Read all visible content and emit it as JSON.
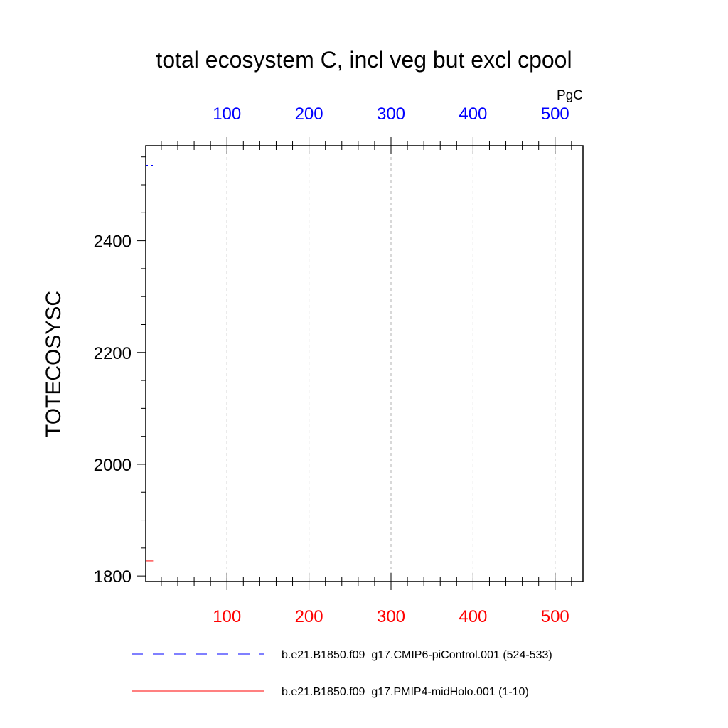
{
  "chart_data": {
    "type": "line",
    "title": "total ecosystem C, incl veg but excl cpool",
    "units": "PgC",
    "ylabel": "TOTECOSYSC",
    "xlabel": "",
    "grid": "vertical dashed",
    "legend_position": "bottom",
    "x_top": {
      "range": [
        1,
        534
      ],
      "ticks": [
        100,
        200,
        300,
        400,
        500
      ],
      "tick_labels": [
        "100",
        "200",
        "300",
        "400",
        "500"
      ],
      "color": "#0000ff"
    },
    "x_bottom": {
      "range": [
        1,
        534
      ],
      "ticks": [
        100,
        200,
        300,
        400,
        500
      ],
      "tick_labels": [
        "100",
        "200",
        "300",
        "400",
        "500"
      ],
      "color": "#ff0000"
    },
    "y": {
      "range": [
        1790,
        2570
      ],
      "ticks": [
        1800,
        2000,
        2200,
        2400
      ],
      "tick_labels": [
        "1800",
        "2000",
        "2200",
        "2400"
      ]
    },
    "series": [
      {
        "name": "b.e21.B1850.f09_g17.CMIP6-piControl.001 (524-533)",
        "color": "#0000ff",
        "dash": "dashed",
        "axis": "top",
        "x": [
          1,
          2,
          3,
          4,
          5,
          6,
          7,
          8,
          9,
          10
        ],
        "y": [
          2535,
          2535,
          2535,
          2535,
          2535,
          2535,
          2535,
          2535,
          2535,
          2535
        ]
      },
      {
        "name": "b.e21.B1850.f09_g17.PMIP4-midHolo.001 (1-10)",
        "color": "#ff0000",
        "dash": "solid",
        "axis": "bottom",
        "x": [
          1,
          2,
          3,
          4,
          5,
          6,
          7,
          8,
          9,
          10
        ],
        "y": [
          1827,
          1827,
          1827,
          1827,
          1827,
          1827,
          1827,
          1827,
          1827,
          1827
        ]
      }
    ]
  }
}
